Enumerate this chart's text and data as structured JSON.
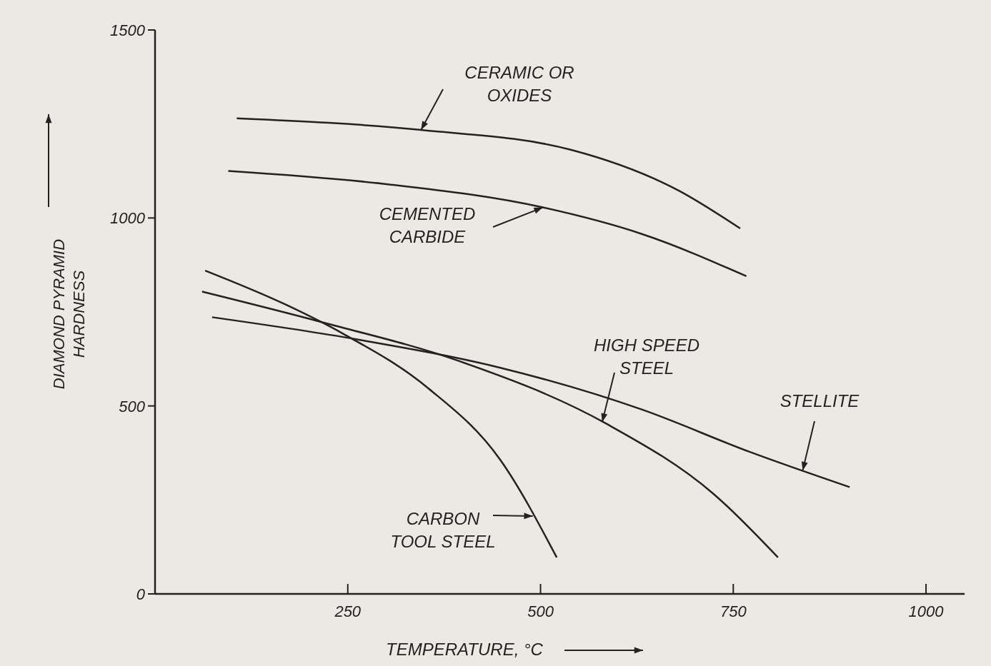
{
  "chart_data": {
    "type": "line",
    "xlabel": "TEMPERATURE, °C",
    "ylabel": "DIAMOND PYRAMID HARDNESS",
    "xlim": [
      0,
      1050
    ],
    "ylim": [
      0,
      1500
    ],
    "xticks": [
      250,
      500,
      750,
      1000
    ],
    "yticks": [
      0,
      500,
      1000,
      1500
    ],
    "grid": false,
    "marker": "none",
    "line_style": "solid",
    "annotations": [
      {
        "text": "CERAMIC OR OXIDES",
        "x": 345,
        "y": 1234
      },
      {
        "text": "CEMENTED CARBIDE",
        "x": 503,
        "y": 1028
      },
      {
        "text": "HIGH SPEED STEEL",
        "x": 580,
        "y": 457
      },
      {
        "text": "STELLITE",
        "x": 840,
        "y": 328
      },
      {
        "text": "CARBON TOOL STEEL",
        "x": 490,
        "y": 207
      }
    ],
    "series": [
      {
        "color": "#222222",
        "x": [
          106,
          345,
          540,
          679,
          759
        ],
        "values": [
          1265,
          1234,
          1181,
          1073,
          972
        ]
      },
      {
        "color": "#222222",
        "x": [
          95,
          300,
          503,
          632,
          767
        ],
        "values": [
          1125,
          1090,
          1028,
          957,
          845
        ]
      },
      {
        "color": "#222222",
        "x": [
          61,
          216,
          392,
          586,
          725,
          808
        ],
        "values": [
          804,
          723,
          621,
          452,
          265,
          97
        ]
      },
      {
        "color": "#222222",
        "x": [
          74,
          262,
          447,
          632,
          771,
          901
        ],
        "values": [
          736,
          677,
          602,
          490,
          378,
          284
        ]
      },
      {
        "color": "#222222",
        "x": [
          65,
          169,
          244,
          355,
          447,
          521
        ],
        "values": [
          860,
          770,
          692,
          546,
          359,
          97
        ]
      }
    ]
  }
}
